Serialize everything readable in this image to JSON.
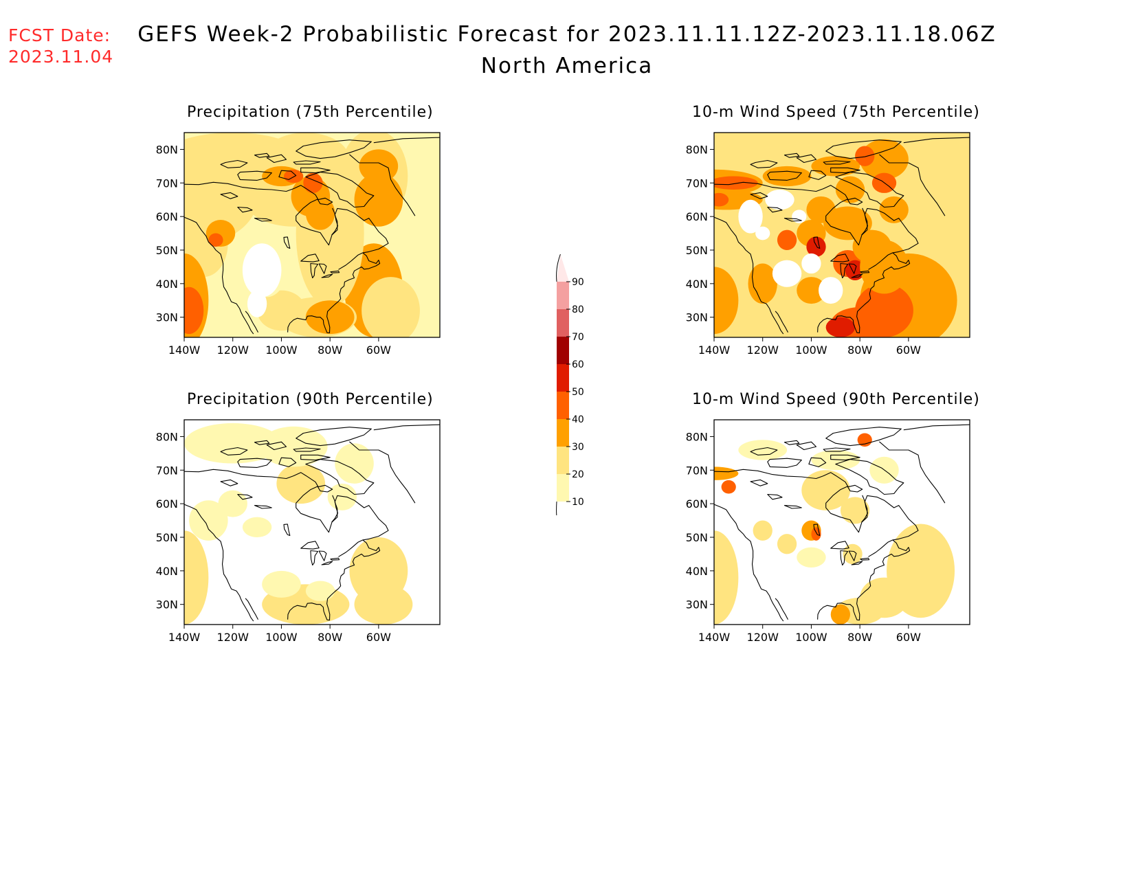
{
  "header": {
    "fcst_label": "FCST Date:",
    "fcst_date": "2023.11.04",
    "title": "GEFS Week-2 Probabilistic Forecast for 2023.11.11.12Z-2023.11.18.06Z",
    "subtitle": "North America"
  },
  "axes": {
    "lat_labels": [
      "80N",
      "70N",
      "60N",
      "50N",
      "40N",
      "30N"
    ],
    "lon_labels": [
      "140W",
      "120W",
      "100W",
      "80W",
      "60W"
    ]
  },
  "panels": [
    {
      "id": "precip75",
      "title": "Precipitation (75th Percentile)"
    },
    {
      "id": "wind75",
      "title": "10-m Wind Speed (75th Percentile)"
    },
    {
      "id": "precip90",
      "title": "Precipitation (90th Percentile)"
    },
    {
      "id": "wind90",
      "title": "10-m Wind Speed (90th Percentile)"
    }
  ],
  "colorbar": {
    "labels": [
      "10",
      "20",
      "30",
      "40",
      "50",
      "60",
      "70",
      "80",
      "90"
    ],
    "colors": [
      "#fff8b0",
      "#ffe480",
      "#ffa000",
      "#ff6000",
      "#e01c00",
      "#a00000",
      "#e06060",
      "#f4a0a0",
      "#ffe8e8"
    ]
  }
}
